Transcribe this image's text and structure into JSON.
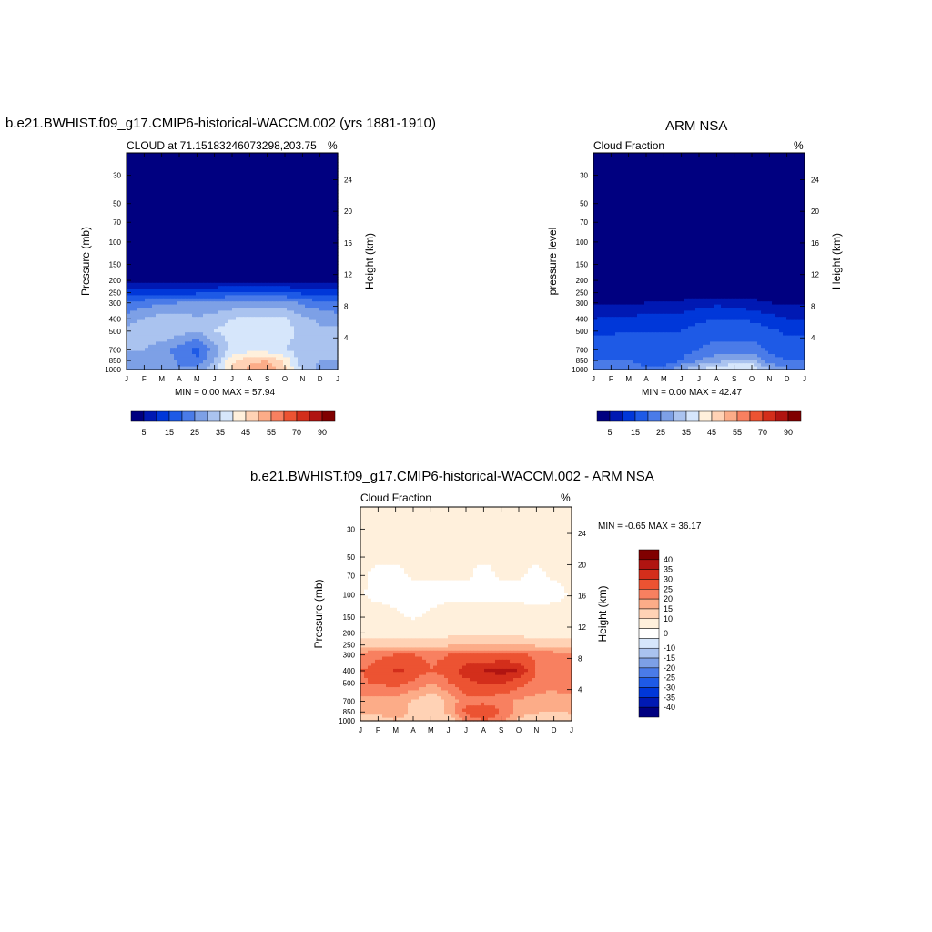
{
  "palettes": {
    "abs": [
      "#000080",
      "#0019b3",
      "#0037d9",
      "#1e5ae6",
      "#4a7be8",
      "#7da0e6",
      "#aac3ef",
      "#d6e6fb",
      "#fff0dc",
      "#ffd2b5",
      "#fcac88",
      "#f88060",
      "#ec5332",
      "#d32e1b",
      "#b01411",
      "#800000"
    ],
    "diff": [
      "#000080",
      "#0019b3",
      "#0037d9",
      "#1e5ae6",
      "#4a7be8",
      "#7da0e6",
      "#aac3ef",
      "#d6e6fb",
      "#ffffff",
      "#fff0dc",
      "#ffd2b5",
      "#fcac88",
      "#f88060",
      "#ec5332",
      "#d32e1b",
      "#b01411",
      "#800000"
    ]
  },
  "panels": {
    "model": {
      "suptitle": "b.e21.BWHIST.f09_g17.CMIP6-historical-WACCM.002 (yrs 1881-1910)",
      "left_title": "CLOUD at 71.15183246073298,203.75",
      "right_title": "%",
      "ylabel": "Pressure (mb)",
      "ylabel_right": "Height (km)",
      "stats": "MIN =   0.00 MAX =  57.94"
    },
    "obs": {
      "suptitle": "ARM NSA",
      "left_title": "Cloud Fraction",
      "right_title": "%",
      "ylabel": "pressure level",
      "ylabel_right": "Height (km)",
      "stats": "MIN =   0.00 MAX =  42.47"
    },
    "diff": {
      "suptitle": "b.e21.BWHIST.f09_g17.CMIP6-historical-WACCM.002 - ARM NSA",
      "left_title": "Cloud Fraction",
      "right_title": "%",
      "ylabel": "Pressure (mb)",
      "ylabel_right": "Height (km)",
      "stats": "MIN =  -0.65 MAX =  36.17"
    }
  },
  "chart_data": [
    {
      "type": "heatmap",
      "panel": "model",
      "title": "CLOUD at 71.15183246073298,203.75",
      "xlabel": "",
      "ylabel": "Pressure (mb)",
      "ylabel_right": "Height (km)",
      "x_ticks": [
        "J",
        "F",
        "M",
        "A",
        "M",
        "J",
        "J",
        "A",
        "S",
        "O",
        "N",
        "D",
        "J"
      ],
      "y_ticks": [
        30,
        50,
        70,
        100,
        150,
        200,
        250,
        300,
        400,
        500,
        700,
        850,
        1000
      ],
      "y_ticks_right": [
        24,
        20,
        16,
        12,
        8,
        4
      ],
      "ylim": [
        20,
        1000
      ],
      "y_scale": "log",
      "months": [
        "J",
        "F",
        "M",
        "A",
        "M",
        "J",
        "J",
        "A",
        "S",
        "O",
        "N",
        "D",
        "J"
      ],
      "levels": [
        30,
        50,
        70,
        100,
        150,
        200,
        250,
        300,
        400,
        500,
        700,
        850,
        1000
      ],
      "values": [
        [
          0,
          0,
          0,
          0,
          0,
          0,
          0,
          0,
          0,
          0,
          0,
          0,
          0
        ],
        [
          0,
          0,
          0,
          0,
          0,
          0,
          0,
          0,
          0,
          0,
          0,
          0,
          0
        ],
        [
          0,
          0,
          0,
          0,
          0,
          0,
          0,
          0,
          0,
          0,
          0,
          0,
          0
        ],
        [
          0,
          0,
          0,
          0,
          0,
          0,
          0,
          0,
          0,
          0,
          0,
          0,
          0
        ],
        [
          0,
          0,
          0,
          0,
          0,
          0,
          0,
          0,
          0,
          0,
          0,
          0,
          0
        ],
        [
          2,
          2,
          2,
          2,
          2,
          3,
          4,
          4,
          4,
          3,
          2,
          2,
          2
        ],
        [
          12,
          13,
          12,
          13,
          14,
          15,
          16,
          17,
          17,
          16,
          14,
          12,
          12
        ],
        [
          20,
          23,
          24,
          25,
          25,
          26,
          27,
          27,
          27,
          27,
          24,
          22,
          20
        ],
        [
          28,
          30,
          33,
          33,
          31,
          32,
          35,
          36,
          37,
          36,
          31,
          29,
          28
        ],
        [
          31,
          33,
          34,
          32,
          30,
          35,
          38,
          39,
          40,
          38,
          33,
          31,
          31
        ],
        [
          30,
          30,
          27,
          23,
          18,
          28,
          36,
          38,
          37,
          35,
          32,
          30,
          30
        ],
        [
          30,
          29,
          28,
          24,
          21,
          30,
          44,
          48,
          50,
          44,
          32,
          30,
          30
        ],
        [
          28,
          27,
          27,
          26,
          26,
          34,
          46,
          52,
          55,
          46,
          33,
          29,
          28
        ]
      ],
      "clevels": [
        5,
        10,
        15,
        20,
        25,
        30,
        35,
        40,
        45,
        50,
        55,
        60,
        70,
        80,
        90
      ],
      "colorbar_labels": [
        "5",
        "15",
        "25",
        "35",
        "45",
        "55",
        "70",
        "90"
      ],
      "min": 0.0,
      "max": 57.94
    },
    {
      "type": "heatmap",
      "panel": "obs",
      "title": "Cloud Fraction",
      "xlabel": "",
      "ylabel": "pressure level",
      "ylabel_right": "Height (km)",
      "x_ticks": [
        "J",
        "F",
        "M",
        "A",
        "M",
        "J",
        "J",
        "A",
        "S",
        "O",
        "N",
        "D",
        "J"
      ],
      "y_ticks": [
        30,
        50,
        70,
        100,
        150,
        200,
        250,
        300,
        400,
        500,
        700,
        850,
        1000
      ],
      "y_ticks_right": [
        24,
        20,
        16,
        12,
        8,
        4
      ],
      "ylim": [
        20,
        1000
      ],
      "y_scale": "log",
      "months": [
        "J",
        "F",
        "M",
        "A",
        "M",
        "J",
        "J",
        "A",
        "S",
        "O",
        "N",
        "D",
        "J"
      ],
      "levels": [
        30,
        50,
        70,
        100,
        150,
        200,
        250,
        300,
        400,
        500,
        700,
        850,
        1000
      ],
      "values": [
        [
          0,
          0,
          0,
          0,
          0,
          0,
          0,
          0,
          0,
          0,
          0,
          0,
          0
        ],
        [
          0,
          0,
          0,
          0,
          0,
          0,
          0,
          0,
          0,
          0,
          0,
          0,
          0
        ],
        [
          0,
          0,
          0,
          0,
          0,
          0,
          0,
          0,
          0,
          0,
          0,
          0,
          0
        ],
        [
          0,
          0,
          0,
          0,
          0,
          0,
          0,
          0,
          0,
          0,
          0,
          0,
          0
        ],
        [
          0,
          0,
          0,
          0,
          0,
          0,
          0,
          0,
          0,
          0,
          0,
          0,
          0
        ],
        [
          0,
          0,
          0,
          0,
          0,
          0,
          0,
          0,
          0,
          0,
          0,
          0,
          0
        ],
        [
          1,
          1,
          1,
          1,
          1,
          1,
          2,
          2,
          2,
          2,
          1,
          1,
          1
        ],
        [
          4,
          4,
          4,
          5,
          6,
          6,
          8,
          9,
          8,
          7,
          5,
          4,
          4
        ],
        [
          10,
          11,
          11,
          12,
          12,
          12,
          14,
          15,
          15,
          14,
          12,
          10,
          10
        ],
        [
          14,
          14,
          15,
          15,
          15,
          15,
          17,
          18,
          18,
          18,
          16,
          14,
          14
        ],
        [
          18,
          19,
          20,
          16,
          15,
          18,
          20,
          22,
          22,
          22,
          19,
          18,
          18
        ],
        [
          20,
          20,
          20,
          17,
          16,
          20,
          25,
          28,
          31,
          31,
          22,
          20,
          20
        ],
        [
          25,
          25,
          24,
          22,
          23,
          30,
          36,
          38,
          42,
          40,
          30,
          26,
          25
        ]
      ],
      "clevels": [
        5,
        10,
        15,
        20,
        25,
        30,
        35,
        40,
        45,
        50,
        55,
        60,
        70,
        80,
        90
      ],
      "colorbar_labels": [
        "5",
        "15",
        "25",
        "35",
        "45",
        "55",
        "70",
        "90"
      ],
      "min": 0.0,
      "max": 42.47
    },
    {
      "type": "heatmap",
      "panel": "diff",
      "title": "Cloud Fraction",
      "xlabel": "",
      "ylabel": "Pressure (mb)",
      "ylabel_right": "Height (km)",
      "x_ticks": [
        "J",
        "F",
        "M",
        "A",
        "M",
        "J",
        "J",
        "A",
        "S",
        "O",
        "N",
        "D",
        "J"
      ],
      "y_ticks": [
        30,
        50,
        70,
        100,
        150,
        200,
        250,
        300,
        400,
        500,
        700,
        850,
        1000
      ],
      "y_ticks_right": [
        24,
        20,
        16,
        12,
        8,
        4
      ],
      "ylim": [
        20,
        1000
      ],
      "y_scale": "log",
      "months": [
        "J",
        "F",
        "M",
        "A",
        "M",
        "J",
        "J",
        "A",
        "S",
        "O",
        "N",
        "D",
        "J"
      ],
      "levels": [
        30,
        50,
        70,
        100,
        150,
        200,
        250,
        300,
        400,
        500,
        700,
        850,
        1000
      ],
      "values": [
        [
          0.5,
          0.5,
          0.5,
          0.5,
          0.5,
          0.5,
          0.5,
          0.5,
          0.5,
          0.5,
          0.5,
          0.5,
          0.5
        ],
        [
          0.2,
          0.2,
          0.2,
          0.2,
          0.2,
          0.2,
          0.2,
          0.2,
          0.2,
          0.2,
          0.2,
          0.2,
          0.2
        ],
        [
          0.2,
          -0.3,
          -0.3,
          0.2,
          0.2,
          0.2,
          0.2,
          -0.4,
          0.2,
          0.2,
          -0.3,
          0.2,
          0.2
        ],
        [
          0.2,
          -0.5,
          -0.5,
          -0.5,
          -0.5,
          -0.5,
          -0.5,
          -0.5,
          -0.5,
          -0.5,
          -0.5,
          -0.5,
          0.2
        ],
        [
          1,
          1,
          0.3,
          -0.3,
          0.3,
          1,
          1,
          1,
          1,
          1,
          0.5,
          1,
          1
        ],
        [
          2,
          2,
          2,
          2,
          2,
          3,
          4,
          4,
          4,
          3,
          2,
          2,
          2
        ],
        [
          9,
          9,
          8,
          8,
          8,
          9,
          10,
          10,
          10,
          10,
          9,
          8,
          9
        ],
        [
          16,
          19,
          20,
          20,
          19,
          20,
          21,
          20,
          21,
          21,
          19,
          18,
          16
        ],
        [
          20,
          22,
          26,
          24,
          20,
          22,
          28,
          30,
          32,
          30,
          20,
          19,
          20
        ],
        [
          19,
          21,
          22,
          19,
          15,
          20,
          23,
          26,
          26,
          22,
          18,
          17,
          19
        ],
        [
          13,
          12,
          13,
          9,
          5,
          11,
          19,
          18,
          16,
          14,
          13,
          12,
          13
        ],
        [
          11,
          11,
          14,
          8,
          6,
          12,
          22,
          26,
          20,
          13,
          11,
          10,
          11
        ],
        [
          5,
          7,
          10,
          6,
          5,
          6,
          15,
          20,
          16,
          8,
          5,
          4,
          5
        ]
      ],
      "clevels": [
        -40,
        -35,
        -30,
        -25,
        -20,
        -15,
        -10,
        -5,
        0,
        5,
        10,
        15,
        20,
        25,
        30,
        35,
        40
      ],
      "colorbar_labels": [
        "40",
        "35",
        "30",
        "25",
        "20",
        "15",
        "10",
        "0",
        "-10",
        "-15",
        "-20",
        "-25",
        "-30",
        "-35",
        "-40"
      ],
      "min": -0.65,
      "max": 36.17
    }
  ]
}
